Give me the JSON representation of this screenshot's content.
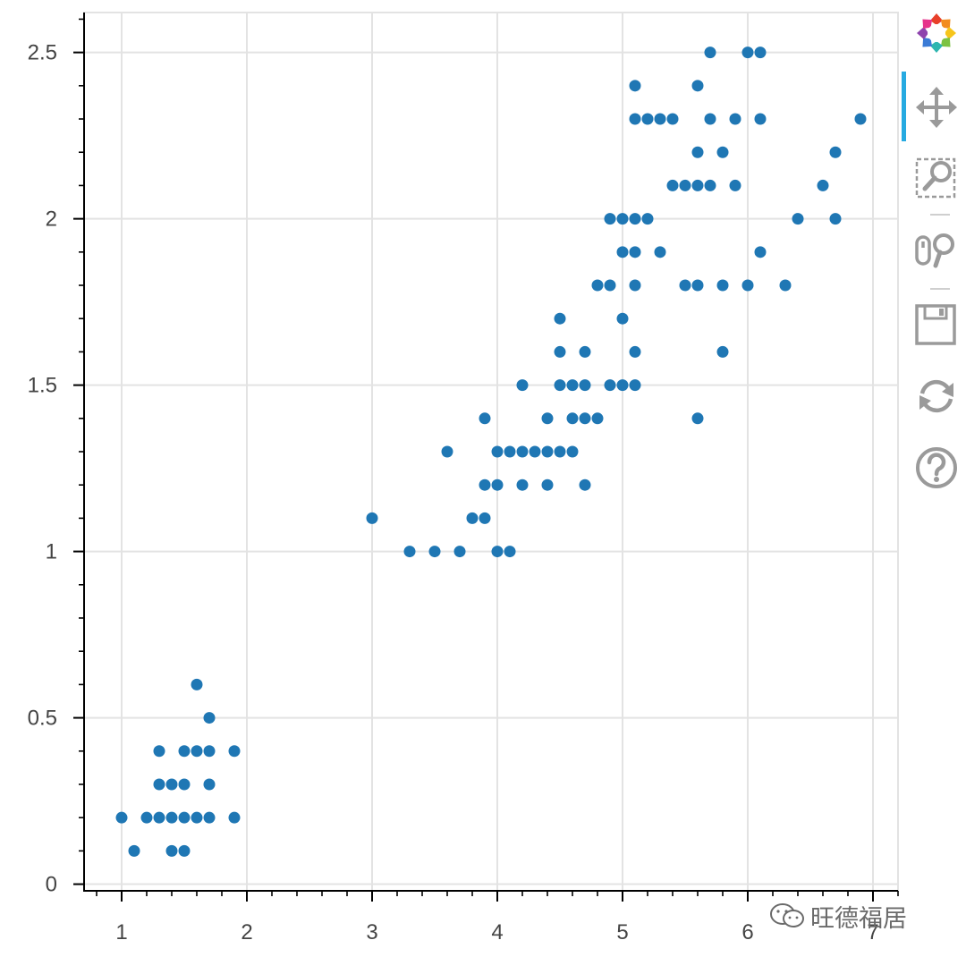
{
  "chart_data": {
    "type": "scatter",
    "title": "",
    "xlabel": "",
    "ylabel": "",
    "xlim": [
      0.7,
      7.2
    ],
    "ylim": [
      -0.02,
      2.62
    ],
    "xticks": [
      1,
      2,
      3,
      4,
      5,
      6,
      7
    ],
    "xtick_labels": [
      "1",
      "2",
      "3",
      "4",
      "5",
      "6",
      "7"
    ],
    "yticks": [
      0,
      0.5,
      1,
      1.5,
      2,
      2.5
    ],
    "ytick_labels": [
      "0",
      "0.5",
      "1",
      "1.5",
      "2",
      "2.5"
    ],
    "grid": true,
    "marker_color": "#1f77b4",
    "points": [
      [
        1.0,
        0.2
      ],
      [
        1.1,
        0.1
      ],
      [
        1.2,
        0.2
      ],
      [
        1.3,
        0.2
      ],
      [
        1.3,
        0.3
      ],
      [
        1.3,
        0.4
      ],
      [
        1.4,
        0.1
      ],
      [
        1.4,
        0.2
      ],
      [
        1.4,
        0.3
      ],
      [
        1.5,
        0.1
      ],
      [
        1.5,
        0.2
      ],
      [
        1.5,
        0.3
      ],
      [
        1.5,
        0.4
      ],
      [
        1.6,
        0.2
      ],
      [
        1.6,
        0.4
      ],
      [
        1.6,
        0.6
      ],
      [
        1.7,
        0.2
      ],
      [
        1.7,
        0.3
      ],
      [
        1.7,
        0.4
      ],
      [
        1.7,
        0.5
      ],
      [
        1.9,
        0.2
      ],
      [
        1.9,
        0.4
      ],
      [
        3.0,
        1.1
      ],
      [
        3.3,
        1.0
      ],
      [
        3.5,
        1.0
      ],
      [
        3.6,
        1.3
      ],
      [
        3.7,
        1.0
      ],
      [
        3.8,
        1.1
      ],
      [
        3.9,
        1.1
      ],
      [
        3.9,
        1.2
      ],
      [
        3.9,
        1.4
      ],
      [
        4.0,
        1.0
      ],
      [
        4.0,
        1.2
      ],
      [
        4.0,
        1.3
      ],
      [
        4.1,
        1.0
      ],
      [
        4.1,
        1.3
      ],
      [
        4.2,
        1.2
      ],
      [
        4.2,
        1.3
      ],
      [
        4.2,
        1.5
      ],
      [
        4.3,
        1.3
      ],
      [
        4.4,
        1.2
      ],
      [
        4.4,
        1.3
      ],
      [
        4.4,
        1.4
      ],
      [
        4.5,
        1.3
      ],
      [
        4.5,
        1.5
      ],
      [
        4.5,
        1.6
      ],
      [
        4.5,
        1.7
      ],
      [
        4.6,
        1.3
      ],
      [
        4.6,
        1.4
      ],
      [
        4.6,
        1.5
      ],
      [
        4.7,
        1.2
      ],
      [
        4.7,
        1.4
      ],
      [
        4.7,
        1.5
      ],
      [
        4.7,
        1.6
      ],
      [
        4.8,
        1.4
      ],
      [
        4.8,
        1.8
      ],
      [
        4.9,
        1.5
      ],
      [
        4.9,
        1.8
      ],
      [
        4.9,
        2.0
      ],
      [
        5.0,
        1.5
      ],
      [
        5.0,
        1.7
      ],
      [
        5.0,
        1.9
      ],
      [
        5.0,
        2.0
      ],
      [
        5.1,
        1.5
      ],
      [
        5.1,
        1.6
      ],
      [
        5.1,
        1.8
      ],
      [
        5.1,
        1.9
      ],
      [
        5.1,
        2.0
      ],
      [
        5.1,
        2.3
      ],
      [
        5.1,
        2.4
      ],
      [
        5.2,
        2.0
      ],
      [
        5.2,
        2.3
      ],
      [
        5.3,
        1.9
      ],
      [
        5.3,
        2.3
      ],
      [
        5.4,
        2.1
      ],
      [
        5.4,
        2.3
      ],
      [
        5.5,
        1.8
      ],
      [
        5.5,
        2.1
      ],
      [
        5.6,
        1.4
      ],
      [
        5.6,
        1.8
      ],
      [
        5.6,
        2.1
      ],
      [
        5.6,
        2.2
      ],
      [
        5.6,
        2.4
      ],
      [
        5.7,
        2.1
      ],
      [
        5.7,
        2.3
      ],
      [
        5.7,
        2.5
      ],
      [
        5.8,
        1.6
      ],
      [
        5.8,
        1.8
      ],
      [
        5.8,
        2.2
      ],
      [
        5.9,
        2.1
      ],
      [
        5.9,
        2.3
      ],
      [
        6.0,
        1.8
      ],
      [
        6.0,
        2.5
      ],
      [
        6.1,
        1.9
      ],
      [
        6.1,
        2.3
      ],
      [
        6.1,
        2.5
      ],
      [
        6.3,
        1.8
      ],
      [
        6.4,
        2.0
      ],
      [
        6.6,
        2.1
      ],
      [
        6.7,
        2.0
      ],
      [
        6.7,
        2.2
      ],
      [
        6.9,
        2.3
      ]
    ]
  },
  "toolbar": {
    "tools": [
      {
        "name": "bokeh-logo-icon",
        "interactable": true
      },
      {
        "name": "pan-icon",
        "interactable": true,
        "active": true
      },
      {
        "name": "box-zoom-icon",
        "interactable": true
      },
      {
        "name": "wheel-zoom-icon",
        "interactable": true
      },
      {
        "name": "save-icon",
        "interactable": true
      },
      {
        "name": "reset-icon",
        "interactable": true
      },
      {
        "name": "help-icon",
        "interactable": true
      }
    ],
    "accent_color": "#26aae1"
  },
  "watermark": {
    "text": "旺德福居"
  }
}
